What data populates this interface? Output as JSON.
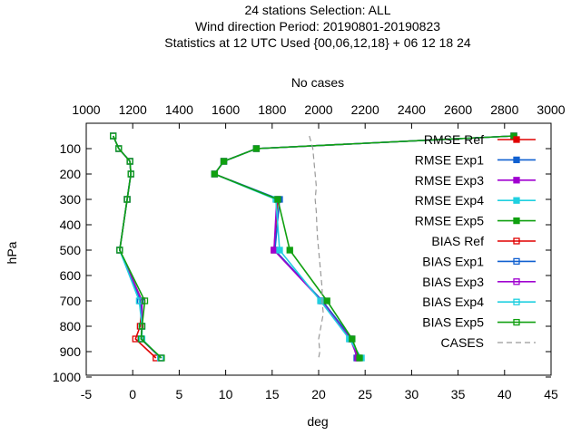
{
  "chart_data": {
    "type": "line",
    "title_lines": [
      "24 stations Selection: ALL",
      "Wind direction  Period: 20190801-20190823",
      "Statistics at 12 UTC  Used {00,06,12,18} + 06 12 18 24"
    ],
    "xlabel": "deg",
    "ylabel": "hPa",
    "x2label": "No cases",
    "xlim": [
      -5,
      45
    ],
    "ylim": [
      1000,
      25
    ],
    "x2lim": [
      1000,
      3000
    ],
    "xticks": [
      "-5",
      "0",
      "5",
      "10",
      "15",
      "20",
      "25",
      "30",
      "35",
      "40",
      "45"
    ],
    "yticks": [
      "100",
      "200",
      "300",
      "400",
      "500",
      "600",
      "700",
      "800",
      "900",
      "1000"
    ],
    "x2ticks": [
      "1000",
      "1200",
      "1400",
      "1600",
      "1800",
      "2000",
      "2200",
      "2400",
      "2600",
      "2800",
      "3000"
    ],
    "legend_position": "top-right",
    "grid": false,
    "series": [
      {
        "name": "RMSE Ref",
        "color": "#e00000",
        "marker": "filled",
        "axis": "x",
        "points": [
          [
            41,
            50
          ],
          [
            13.3,
            100
          ],
          [
            9.8,
            150
          ],
          [
            8.8,
            200
          ],
          [
            15.6,
            300
          ],
          [
            15.2,
            500
          ],
          [
            20.4,
            700
          ],
          [
            23.5,
            850
          ],
          [
            24.3,
            925
          ]
        ]
      },
      {
        "name": "RMSE Exp1",
        "color": "#1060d0",
        "marker": "filled",
        "axis": "x",
        "points": [
          [
            41,
            50
          ],
          [
            13.3,
            100
          ],
          [
            9.8,
            150
          ],
          [
            8.8,
            200
          ],
          [
            15.8,
            300
          ],
          [
            15.3,
            500
          ],
          [
            20.4,
            700
          ],
          [
            23.6,
            850
          ],
          [
            24.1,
            925
          ]
        ]
      },
      {
        "name": "RMSE Exp3",
        "color": "#a000d0",
        "marker": "filled",
        "axis": "x",
        "points": [
          [
            41,
            50
          ],
          [
            13.3,
            100
          ],
          [
            9.8,
            150
          ],
          [
            8.8,
            200
          ],
          [
            15.5,
            300
          ],
          [
            15.2,
            500
          ],
          [
            20.3,
            700
          ],
          [
            23.4,
            850
          ],
          [
            24.2,
            925
          ]
        ]
      },
      {
        "name": "RMSE Exp4",
        "color": "#20d0e0",
        "marker": "filled",
        "axis": "x",
        "points": [
          [
            41,
            50
          ],
          [
            13.3,
            100
          ],
          [
            9.8,
            150
          ],
          [
            8.8,
            200
          ],
          [
            15.4,
            300
          ],
          [
            15.8,
            500
          ],
          [
            20.2,
            700
          ],
          [
            23.3,
            850
          ],
          [
            24.6,
            925
          ]
        ]
      },
      {
        "name": "RMSE Exp5",
        "color": "#10a010",
        "marker": "filled",
        "axis": "x",
        "points": [
          [
            41,
            50
          ],
          [
            13.3,
            100
          ],
          [
            9.8,
            150
          ],
          [
            8.8,
            200
          ],
          [
            15.6,
            300
          ],
          [
            16.9,
            500
          ],
          [
            20.9,
            700
          ],
          [
            23.6,
            850
          ],
          [
            24.4,
            925
          ]
        ]
      },
      {
        "name": "BIAS Ref",
        "color": "#e00000",
        "marker": "open",
        "axis": "x",
        "points": [
          [
            -2.1,
            50
          ],
          [
            -1.5,
            100
          ],
          [
            -0.3,
            150
          ],
          [
            -0.2,
            200
          ],
          [
            -0.6,
            300
          ],
          [
            -1.4,
            500
          ],
          [
            1.0,
            700
          ],
          [
            0.8,
            800
          ],
          [
            0.3,
            850
          ],
          [
            2.5,
            925
          ]
        ]
      },
      {
        "name": "BIAS Exp1",
        "color": "#1060d0",
        "marker": "open",
        "axis": "x",
        "points": [
          [
            -2.1,
            50
          ],
          [
            -1.5,
            100
          ],
          [
            -0.3,
            150
          ],
          [
            -0.2,
            200
          ],
          [
            -0.6,
            300
          ],
          [
            -1.4,
            500
          ],
          [
            0.8,
            700
          ],
          [
            1.0,
            800
          ],
          [
            0.9,
            850
          ],
          [
            3.0,
            925
          ]
        ]
      },
      {
        "name": "BIAS Exp3",
        "color": "#a000d0",
        "marker": "open",
        "axis": "x",
        "points": [
          [
            -2.1,
            50
          ],
          [
            -1.5,
            100
          ],
          [
            -0.3,
            150
          ],
          [
            -0.2,
            200
          ],
          [
            -0.6,
            300
          ],
          [
            -1.4,
            500
          ],
          [
            1.0,
            700
          ],
          [
            1.0,
            800
          ],
          [
            0.9,
            850
          ],
          [
            3.0,
            925
          ]
        ]
      },
      {
        "name": "BIAS Exp4",
        "color": "#20d0e0",
        "marker": "open",
        "axis": "x",
        "points": [
          [
            -2.1,
            50
          ],
          [
            -1.5,
            100
          ],
          [
            -0.3,
            150
          ],
          [
            -0.2,
            200
          ],
          [
            -0.6,
            300
          ],
          [
            -1.4,
            500
          ],
          [
            0.7,
            700
          ],
          [
            1.0,
            800
          ],
          [
            1.0,
            850
          ],
          [
            3.0,
            925
          ]
        ]
      },
      {
        "name": "BIAS Exp5",
        "color": "#10a010",
        "marker": "open",
        "axis": "x",
        "points": [
          [
            -2.1,
            50
          ],
          [
            -1.5,
            100
          ],
          [
            -0.3,
            150
          ],
          [
            -0.2,
            200
          ],
          [
            -0.6,
            300
          ],
          [
            -1.4,
            500
          ],
          [
            1.3,
            700
          ],
          [
            1.0,
            800
          ],
          [
            0.9,
            850
          ],
          [
            3.1,
            925
          ]
        ]
      },
      {
        "name": "CASES",
        "color": "#999999",
        "marker": "none",
        "dashed": true,
        "axis": "x2",
        "points": [
          [
            1960,
            50
          ],
          [
            1975,
            100
          ],
          [
            1980,
            150
          ],
          [
            1985,
            200
          ],
          [
            1990,
            250
          ],
          [
            1985,
            300
          ],
          [
            1990,
            350
          ],
          [
            1992,
            400
          ],
          [
            1995,
            450
          ],
          [
            2000,
            500
          ],
          [
            2005,
            550
          ],
          [
            2010,
            600
          ],
          [
            2015,
            650
          ],
          [
            2015,
            700
          ],
          [
            2020,
            750
          ],
          [
            2010,
            800
          ],
          [
            2000,
            850
          ],
          [
            2005,
            900
          ],
          [
            2000,
            925
          ]
        ]
      }
    ]
  }
}
